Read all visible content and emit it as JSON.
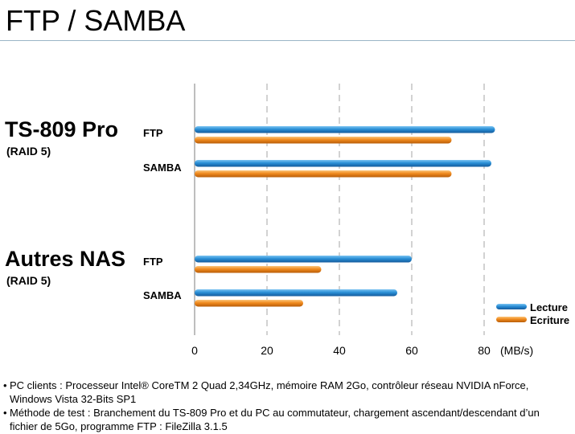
{
  "title": "FTP / SAMBA",
  "groups": [
    {
      "name": "TS-809 Pro",
      "sub": "(RAID 5)"
    },
    {
      "name": "Autres NAS",
      "sub": "(RAID 5)"
    }
  ],
  "legend": [
    {
      "label": "Lecture",
      "color": "#2a8fd6"
    },
    {
      "label": "Ecriture",
      "color": "#f08a1e"
    }
  ],
  "notes": [
    "PC clients : Processeur  Intel® CoreTM 2 Quad 2,34GHz, mémoire RAM 2Go, contrôleur réseau NVIDIA nForce, Windows Vista 32-Bits SP1",
    "Méthode de test : Branchement du TS-809 Pro et du PC au commutateur, chargement ascendant/descendant d’un fichier de 5Go, programme FTP : FileZilla 3.1.5"
  ],
  "chart_data": {
    "type": "bar",
    "orientation": "horizontal",
    "categories": [
      "FTP",
      "SAMBA",
      "FTP",
      "SAMBA"
    ],
    "category_groups": [
      "TS-809 Pro",
      "TS-809 Pro",
      "Autres NAS",
      "Autres NAS"
    ],
    "series": [
      {
        "name": "Lecture",
        "values": [
          83,
          82,
          60,
          56
        ]
      },
      {
        "name": "Ecriture",
        "values": [
          71,
          71,
          35,
          30
        ]
      }
    ],
    "xlim": [
      0,
      100
    ],
    "xticks": [
      0,
      20,
      40,
      60,
      80
    ],
    "unit_label": "(MB/s)",
    "grid": "vertical dashed",
    "legend_position": "bottom-right"
  }
}
